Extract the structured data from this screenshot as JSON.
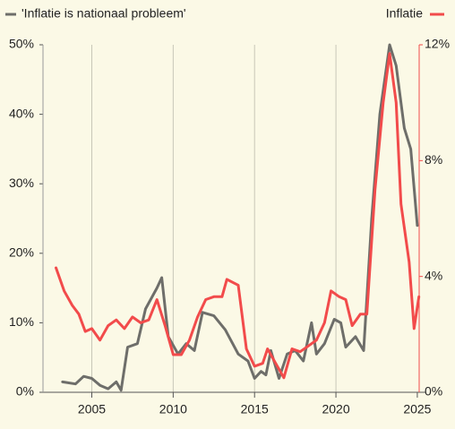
{
  "chart_data": {
    "type": "line",
    "xlim": [
      2002,
      2025.5
    ],
    "xticks": [
      2005,
      2010,
      2015,
      2020,
      2025
    ],
    "ylim": [
      0,
      50
    ],
    "yticks": [
      {
        "value": 0,
        "label": "0%"
      },
      {
        "value": 10,
        "label": "10%"
      },
      {
        "value": 20,
        "label": "20%"
      },
      {
        "value": 30,
        "label": "30%"
      },
      {
        "value": 40,
        "label": "40%"
      },
      {
        "value": 50,
        "label": "50%"
      }
    ],
    "y2lim": [
      0,
      12
    ],
    "y2ticks": [
      {
        "value": 0,
        "label": "0%"
      },
      {
        "value": 4,
        "label": "4%"
      },
      {
        "value": 8,
        "label": "8%"
      },
      {
        "value": 12,
        "label": "12%"
      }
    ],
    "grid": true,
    "series": [
      {
        "name": "'Inflatie is nationaal probleem'",
        "color": "#6e6e6a",
        "x": [
          2003.2,
          2004,
          2004.5,
          2005,
          2005.5,
          2006,
          2006.5,
          2006.8,
          2007.2,
          2007.8,
          2008.3,
          2009,
          2009.3,
          2009.7,
          2010.3,
          2010.8,
          2011.3,
          2011.8,
          2012.5,
          2013.2,
          2014,
          2014.6,
          2015,
          2015.4,
          2015.7,
          2016,
          2016.5,
          2017,
          2017.5,
          2018,
          2018.5,
          2018.8,
          2019.3,
          2019.9,
          2020.3,
          2020.6,
          2021.2,
          2021.7,
          2022.2,
          2022.7,
          2023.3,
          2023.7,
          2024.2,
          2024.6,
          2025
        ],
        "values": [
          1.5,
          1.2,
          2.3,
          2,
          1,
          0.5,
          1.5,
          0.3,
          6.5,
          7,
          12,
          15,
          16.5,
          8,
          5.5,
          7,
          6,
          11.5,
          11,
          9,
          5.5,
          4.5,
          2,
          3,
          2.5,
          6,
          2,
          5.5,
          6,
          4.5,
          10,
          5.5,
          7,
          10.5,
          10,
          6.5,
          8,
          6,
          25,
          40,
          50,
          47,
          38,
          35,
          24
        ]
      },
      {
        "name": "Inflatie",
        "color": "#f24b4b",
        "axis": "y2",
        "x": [
          2002.8,
          2003.3,
          2003.8,
          2004.2,
          2004.6,
          2005,
          2005.5,
          2006,
          2006.5,
          2007,
          2007.5,
          2008,
          2008.5,
          2009,
          2009.5,
          2010,
          2010.5,
          2011,
          2011.5,
          2012,
          2012.5,
          2013,
          2013.3,
          2014,
          2014.5,
          2015,
          2015.5,
          2015.8,
          2016.3,
          2016.8,
          2017.3,
          2017.8,
          2018.3,
          2018.8,
          2019.3,
          2019.7,
          2020.2,
          2020.6,
          2021,
          2021.5,
          2021.9,
          2022.4,
          2022.9,
          2023.3,
          2023.7,
          2024,
          2024.5,
          2024.8,
          2025.1
        ],
        "values": [
          4.3,
          3.5,
          3,
          2.7,
          2.1,
          2.2,
          1.8,
          2.3,
          2.5,
          2.2,
          2.6,
          2.4,
          2.5,
          3.2,
          2.3,
          1.3,
          1.3,
          1.8,
          2.6,
          3.2,
          3.3,
          3.3,
          3.9,
          3.7,
          1.5,
          0.9,
          1,
          1.5,
          1,
          0.5,
          1.5,
          1.4,
          1.6,
          1.8,
          2.4,
          3.5,
          3.3,
          3.2,
          2.3,
          2.7,
          2.7,
          7,
          10,
          11.7,
          10,
          6.5,
          4.5,
          2.2,
          3.3
        ]
      }
    ]
  }
}
